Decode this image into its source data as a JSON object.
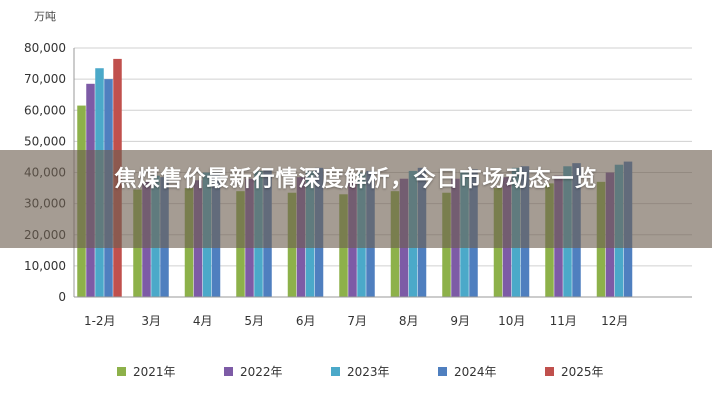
{
  "chart_data": {
    "type": "bar",
    "unit": "万吨",
    "categories": [
      "1-2月",
      "3月",
      "4月",
      "5月",
      "6月",
      "7月",
      "8月",
      "9月",
      "10月",
      "11月",
      "12月"
    ],
    "series": [
      {
        "name": "2021年",
        "color": "#8db14a",
        "values": [
          61500,
          34500,
          35000,
          34000,
          33500,
          33000,
          34000,
          33500,
          35000,
          36500,
          37000
        ]
      },
      {
        "name": "2022年",
        "color": "#7d5ba6",
        "values": [
          68500,
          37000,
          37500,
          38000,
          38500,
          37500,
          38000,
          38000,
          38500,
          39000,
          40000
        ]
      },
      {
        "name": "2023年",
        "color": "#4ba9c9",
        "values": [
          73500,
          39000,
          40000,
          40500,
          40500,
          40000,
          40500,
          40500,
          41500,
          42000,
          42500
        ]
      },
      {
        "name": "2024年",
        "color": "#4f7fbf",
        "values": [
          70000,
          38500,
          40000,
          41000,
          41500,
          40500,
          41500,
          41000,
          42000,
          43000,
          43500
        ]
      },
      {
        "name": "2025年",
        "color": "#c0504d",
        "values": [
          76500,
          null,
          null,
          null,
          null,
          null,
          null,
          null,
          null,
          null,
          null
        ]
      }
    ],
    "ylim": [
      0,
      80000
    ],
    "yticks": [
      "0",
      "10,000",
      "20,000",
      "30,000",
      "40,000",
      "50,000",
      "60,000",
      "70,000",
      "80,000"
    ],
    "grid": true,
    "legend": "bottom"
  },
  "overlay_title": "焦煤售价最新行情深度解析，今日市场动态一览"
}
